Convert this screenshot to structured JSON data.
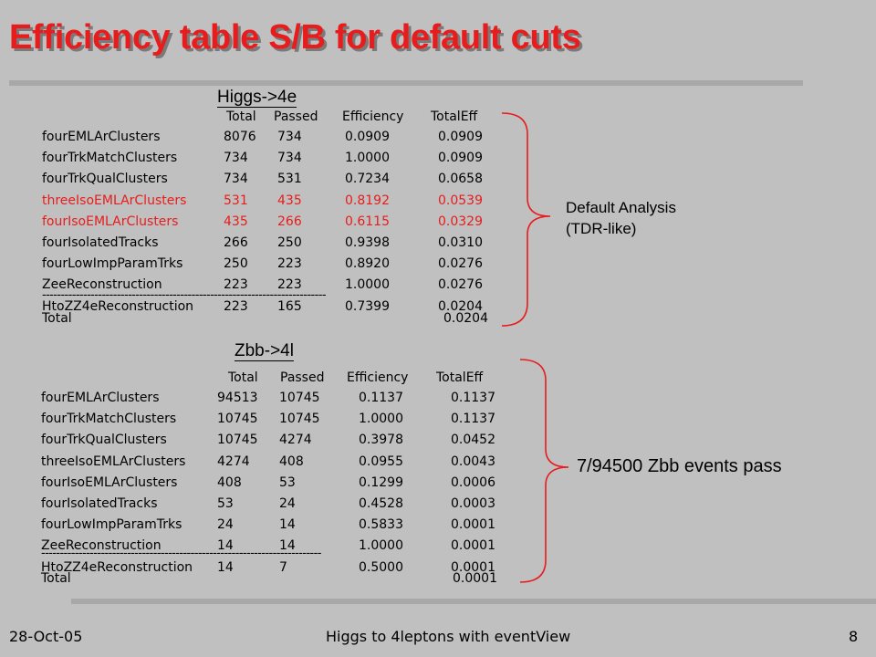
{
  "title": "Efficiency table S/B for default cuts",
  "higgs": {
    "label": "Higgs->4e",
    "headers": [
      "Total",
      "Passed",
      "Efficiency",
      "TotalEff"
    ],
    "rows": [
      {
        "name": "fourEMLArClusters",
        "total": "8076",
        "passed": "734",
        "eff": "0.0909",
        "toteff": "0.0909",
        "highlight": false
      },
      {
        "name": "fourTrkMatchClusters",
        "total": "734",
        "passed": "734",
        "eff": "1.0000",
        "toteff": "0.0909",
        "highlight": false
      },
      {
        "name": "fourTrkQualClusters",
        "total": "734",
        "passed": "531",
        "eff": "0.7234",
        "toteff": "0.0658",
        "highlight": false
      },
      {
        "name": "threeIsoEMLArClusters",
        "total": "531",
        "passed": "435",
        "eff": "0.8192",
        "toteff": "0.0539",
        "highlight": true
      },
      {
        "name": "fourIsoEMLArClusters",
        "total": "435",
        "passed": "266",
        "eff": "0.6115",
        "toteff": "0.0329",
        "highlight": true
      },
      {
        "name": "fourIsolatedTracks",
        "total": "266",
        "passed": "250",
        "eff": "0.9398",
        "toteff": "0.0310",
        "highlight": false
      },
      {
        "name": "fourLowImpParamTrks",
        "total": "250",
        "passed": "223",
        "eff": "0.8920",
        "toteff": "0.0276",
        "highlight": false
      },
      {
        "name": "ZeeReconstruction",
        "total": "223",
        "passed": "223",
        "eff": "1.0000",
        "toteff": "0.0276",
        "highlight": false
      },
      {
        "name": "HtoZZ4eReconstruction",
        "total": "223",
        "passed": "165",
        "eff": "0.7399",
        "toteff": "0.0204",
        "highlight": false
      }
    ],
    "separator": "----------------------------------------------------------------------------",
    "total_label": "Total",
    "total_value": "0.0204",
    "note_line1": "Default Analysis",
    "note_line2": "(TDR-like)"
  },
  "zbb": {
    "label": "Zbb->4l",
    "headers": [
      "Total",
      "Passed",
      "Efficiency",
      "TotalEff"
    ],
    "rows": [
      {
        "name": "fourEMLArClusters",
        "total": "94513",
        "passed": "10745",
        "eff": "0.1137",
        "toteff": "0.1137"
      },
      {
        "name": "fourTrkMatchClusters",
        "total": "10745",
        "passed": "10745",
        "eff": "1.0000",
        "toteff": "0.1137"
      },
      {
        "name": "fourTrkQualClusters",
        "total": "10745",
        "passed": "4274",
        "eff": "0.3978",
        "toteff": "0.0452"
      },
      {
        "name": "threeIsoEMLArClusters",
        "total": "4274",
        "passed": "408",
        "eff": "0.0955",
        "toteff": "0.0043"
      },
      {
        "name": "fourIsoEMLArClusters",
        "total": "408",
        "passed": "53",
        "eff": "0.1299",
        "toteff": "0.0006"
      },
      {
        "name": "fourIsolatedTracks",
        "total": "53",
        "passed": "24",
        "eff": "0.4528",
        "toteff": "0.0003"
      },
      {
        "name": "fourLowImpParamTrks",
        "total": "24",
        "passed": "14",
        "eff": "0.5833",
        "toteff": "0.0001"
      },
      {
        "name": "ZeeReconstruction",
        "total": "14",
        "passed": "14",
        "eff": "1.0000",
        "toteff": "0.0001"
      },
      {
        "name": "HtoZZ4eReconstruction",
        "total": "14",
        "passed": "7",
        "eff": "0.5000",
        "toteff": "0.0001"
      }
    ],
    "separator": "---------------------------------------------------------------------------",
    "total_label": "Total",
    "total_value": "0.0001",
    "note": "7/94500 Zbb events pass"
  },
  "footer": {
    "date": "28-Oct-05",
    "center": "Higgs to 4leptons  with eventView",
    "page": "8"
  },
  "colors": {
    "background": "#c0c0c0",
    "title": "#e81c1c",
    "highlight": "#e81c1c",
    "brace": "#e81c1c",
    "rule": "#a8a8a8"
  }
}
